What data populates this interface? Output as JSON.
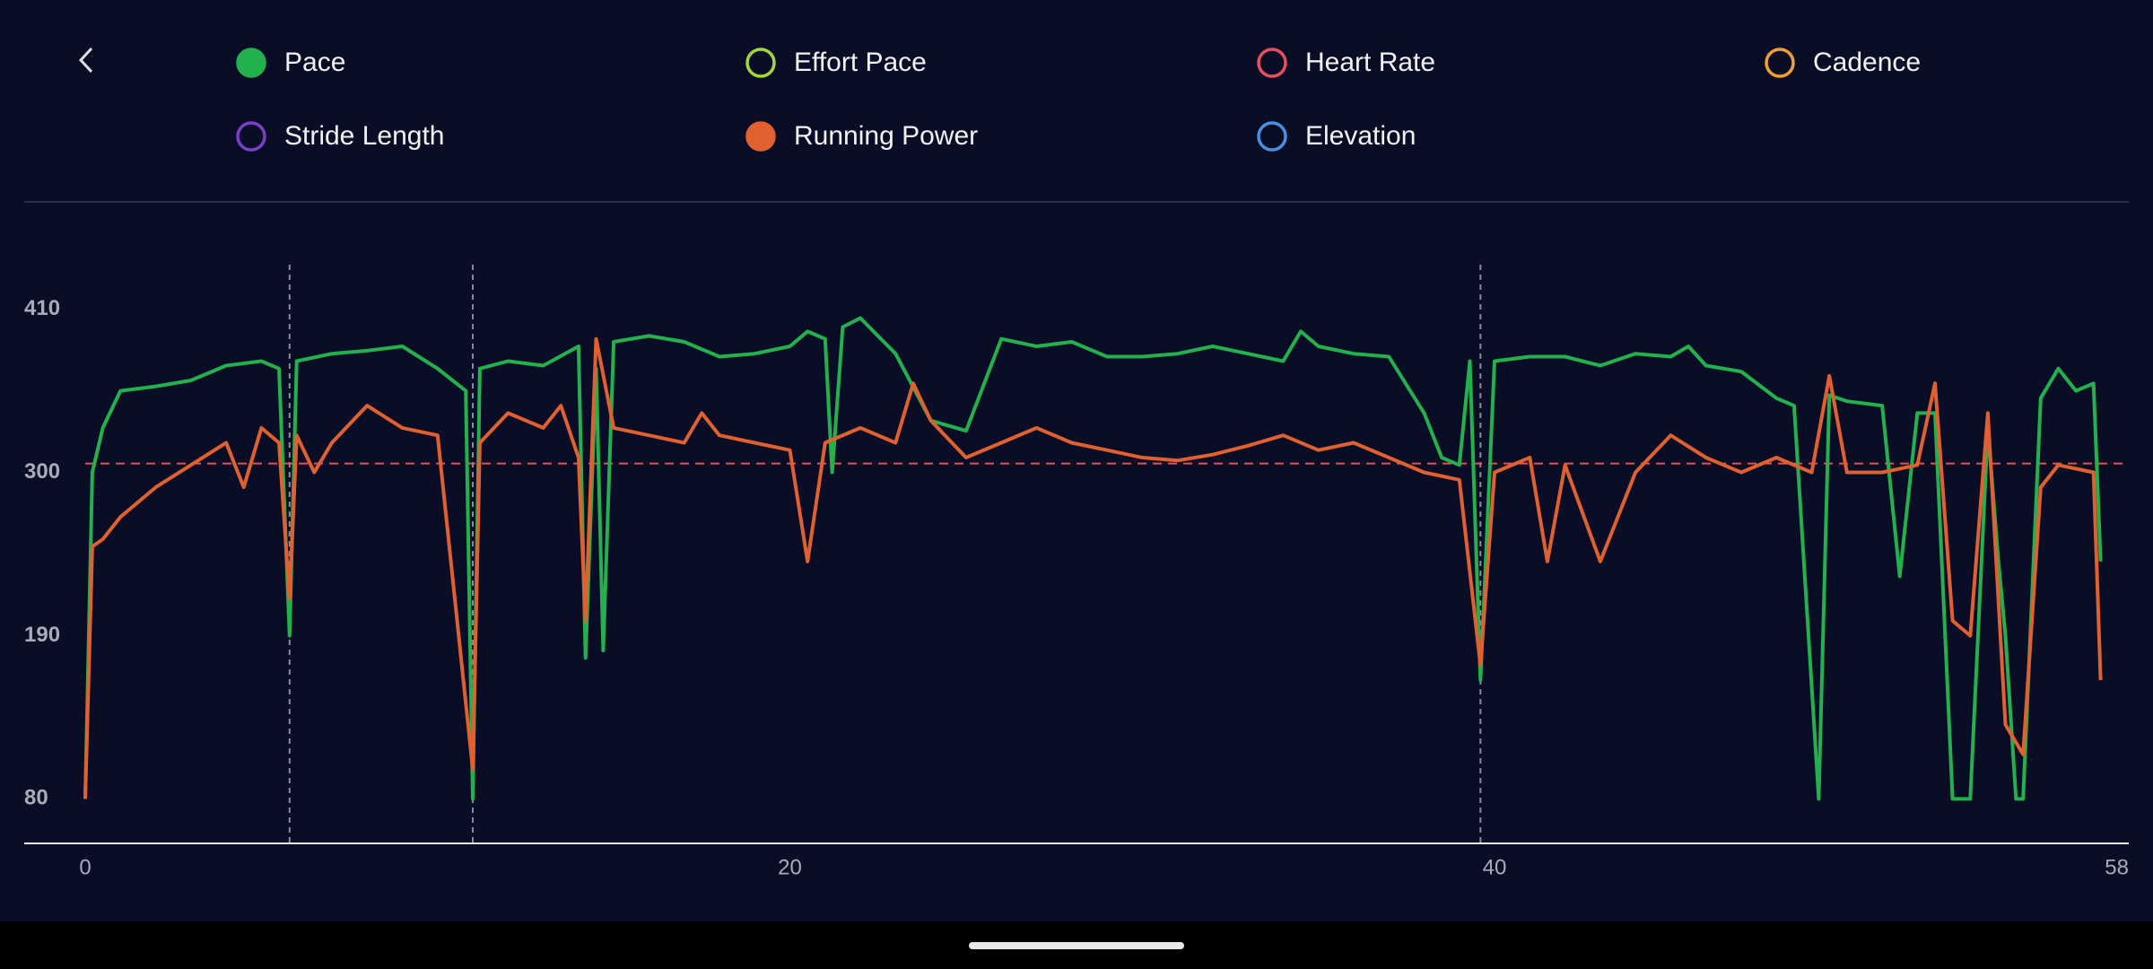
{
  "chart_data": {
    "type": "line",
    "series": [
      {
        "name": "Pace",
        "color": "#22b14c",
        "visible": true,
        "x": [
          0,
          0.2,
          0.5,
          1,
          2,
          3,
          4,
          5,
          5.5,
          5.8,
          6,
          7,
          8,
          9,
          10,
          10.8,
          11,
          11.2,
          12,
          13,
          14,
          14.2,
          14.5,
          14.7,
          15,
          16,
          17,
          18,
          19,
          20,
          20.5,
          21,
          21.2,
          21.5,
          22,
          22.5,
          23,
          24,
          25,
          26,
          27,
          28,
          29,
          30,
          31,
          32,
          33,
          34,
          34.5,
          35,
          36,
          37,
          38,
          38.5,
          39,
          39.3,
          39.6,
          40,
          41,
          42,
          43,
          44,
          45,
          45.5,
          46,
          47,
          48,
          48.5,
          49.2,
          49.5,
          50,
          51,
          51.5,
          52,
          52.5,
          53,
          53.5,
          54,
          54.3,
          54.5,
          54.8,
          55,
          55.5,
          56,
          56.5,
          57,
          57.2
        ],
        "values": [
          80,
          300,
          330,
          355,
          358,
          362,
          372,
          375,
          370,
          190,
          375,
          380,
          382,
          385,
          370,
          355,
          80,
          370,
          375,
          372,
          385,
          175,
          370,
          180,
          388,
          392,
          388,
          378,
          380,
          385,
          395,
          390,
          300,
          398,
          404,
          392,
          380,
          335,
          328,
          390,
          385,
          388,
          378,
          378,
          380,
          385,
          380,
          375,
          395,
          385,
          380,
          378,
          340,
          310,
          305,
          375,
          160,
          375,
          378,
          378,
          372,
          380,
          378,
          385,
          372,
          368,
          350,
          345,
          80,
          352,
          348,
          345,
          230,
          340,
          340,
          80,
          80,
          330,
          240,
          190,
          80,
          80,
          350,
          370,
          355,
          360,
          240
        ]
      },
      {
        "name": "Effort Pace",
        "color": "#a5d63c",
        "visible": false
      },
      {
        "name": "Heart Rate",
        "color": "#e5505a",
        "visible": false
      },
      {
        "name": "Cadence",
        "color": "#f0a030",
        "visible": false
      },
      {
        "name": "Stride Length",
        "color": "#7b3fc8",
        "visible": false
      },
      {
        "name": "Running Power",
        "color": "#e06030",
        "visible": true,
        "x": [
          0,
          0.2,
          0.5,
          1,
          2,
          3,
          4,
          4.5,
          5,
          5.5,
          5.8,
          6,
          6.5,
          7,
          8,
          9,
          10,
          11,
          11.2,
          12,
          13,
          13.5,
          14,
          14.2,
          14.5,
          15,
          16,
          17,
          17.5,
          18,
          19,
          20,
          20.5,
          21,
          22,
          23,
          23.5,
          24,
          25,
          26,
          27,
          28,
          29,
          30,
          31,
          32,
          33,
          34,
          35,
          36,
          37,
          38,
          39,
          39.6,
          40,
          41,
          41.5,
          42,
          43,
          44,
          45,
          46,
          47,
          48,
          49,
          49.5,
          50,
          51,
          52,
          52.5,
          53,
          53.5,
          54,
          54.5,
          55,
          55.5,
          56,
          57,
          57.2
        ],
        "values": [
          80,
          250,
          255,
          270,
          290,
          305,
          320,
          290,
          330,
          320,
          215,
          325,
          300,
          320,
          345,
          330,
          325,
          100,
          320,
          340,
          330,
          345,
          310,
          200,
          390,
          330,
          325,
          320,
          340,
          325,
          320,
          315,
          240,
          320,
          330,
          320,
          360,
          335,
          310,
          320,
          330,
          320,
          315,
          310,
          308,
          312,
          318,
          325,
          315,
          320,
          310,
          300,
          295,
          170,
          300,
          310,
          240,
          305,
          240,
          300,
          325,
          310,
          300,
          310,
          300,
          365,
          300,
          300,
          305,
          360,
          200,
          190,
          340,
          130,
          110,
          290,
          305,
          300,
          160
        ]
      },
      {
        "name": "Elevation",
        "color": "#4a90e2",
        "visible": false
      }
    ],
    "xlim": [
      0,
      58
    ],
    "xticks": [
      0,
      20,
      40,
      58
    ],
    "ylim": [
      50,
      440
    ],
    "yticks": [
      80,
      190,
      300,
      410
    ],
    "reference_line": 306,
    "markers": [
      5.8,
      11,
      39.6
    ]
  }
}
